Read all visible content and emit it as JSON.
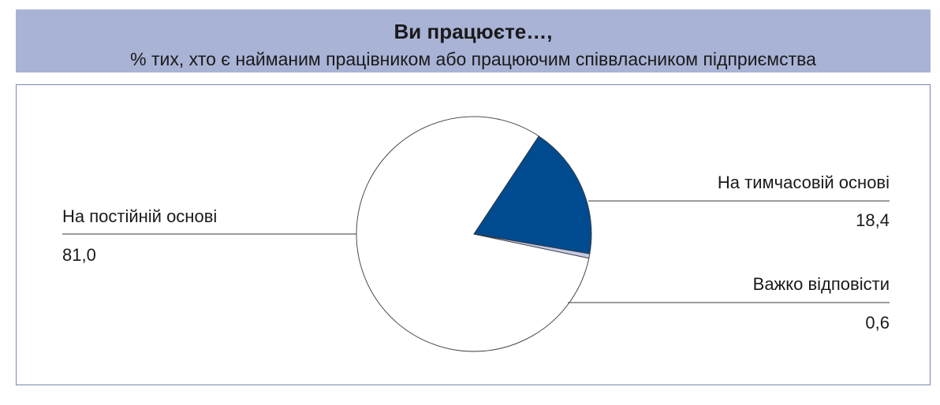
{
  "header": {
    "title": "Ви працюєте…,",
    "subtitle": "% тих, хто є найманим працівником або працюючим співвласником підприємства"
  },
  "chart_data": {
    "type": "pie",
    "title": "Ви працюєте…,",
    "subtitle": "% тих, хто є найманим працівником або працюючим співвласником підприємства",
    "slices": [
      {
        "label": "На постійній основі",
        "value": 81.0,
        "value_label": "81,0",
        "color": "#ffffff"
      },
      {
        "label": "На тимчасовій основі",
        "value": 18.4,
        "value_label": "18,4",
        "color": "#004a8f"
      },
      {
        "label": "Важко відповісти",
        "value": 0.6,
        "value_label": "0,6",
        "color": "#c3c9e6"
      }
    ],
    "legend": "none"
  }
}
